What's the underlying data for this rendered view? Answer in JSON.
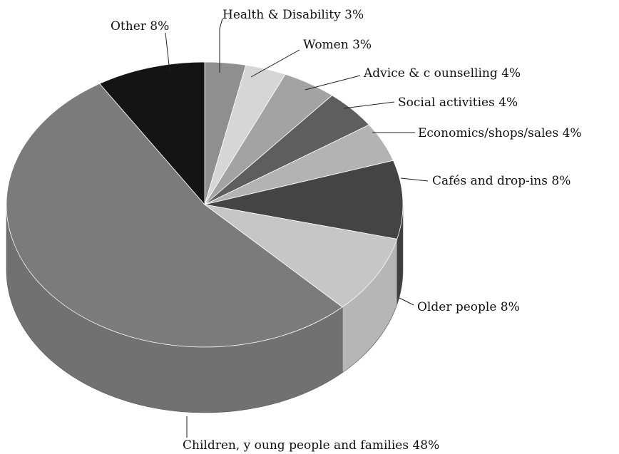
{
  "chart_data": {
    "type": "pie",
    "title": "",
    "three_d": true,
    "slices": [
      {
        "label": "Health & Disability",
        "value": 3,
        "display": "Health & Disability 3%",
        "color": "#8f8f8f"
      },
      {
        "label": "Women",
        "value": 3,
        "display": "Women 3%",
        "color": "#d6d6d6"
      },
      {
        "label": "Advice & counselling",
        "value": 4,
        "display": "Advice & c ounselling 4%",
        "color": "#a3a3a3"
      },
      {
        "label": "Social activities",
        "value": 4,
        "display": "Social activities 4%",
        "color": "#5e5e5e"
      },
      {
        "label": "Economics/shops/sales",
        "value": 4,
        "display": "Economics/shops/sales 4%",
        "color": "#b3b3b3"
      },
      {
        "label": "Cafés and drop-ins",
        "value": 8,
        "display": "Cafés and drop-ins 8%",
        "color": "#444444"
      },
      {
        "label": "Older people",
        "value": 8,
        "display": "Older people 8%",
        "color": "#c6c6c6"
      },
      {
        "label": "Children, young people and families",
        "value": 48,
        "display": "Children, y oung people and families 48%",
        "color": "#7b7b7b"
      },
      {
        "label": "Other",
        "value": 8,
        "display": "Other 8%",
        "color": "#141414"
      }
    ]
  }
}
